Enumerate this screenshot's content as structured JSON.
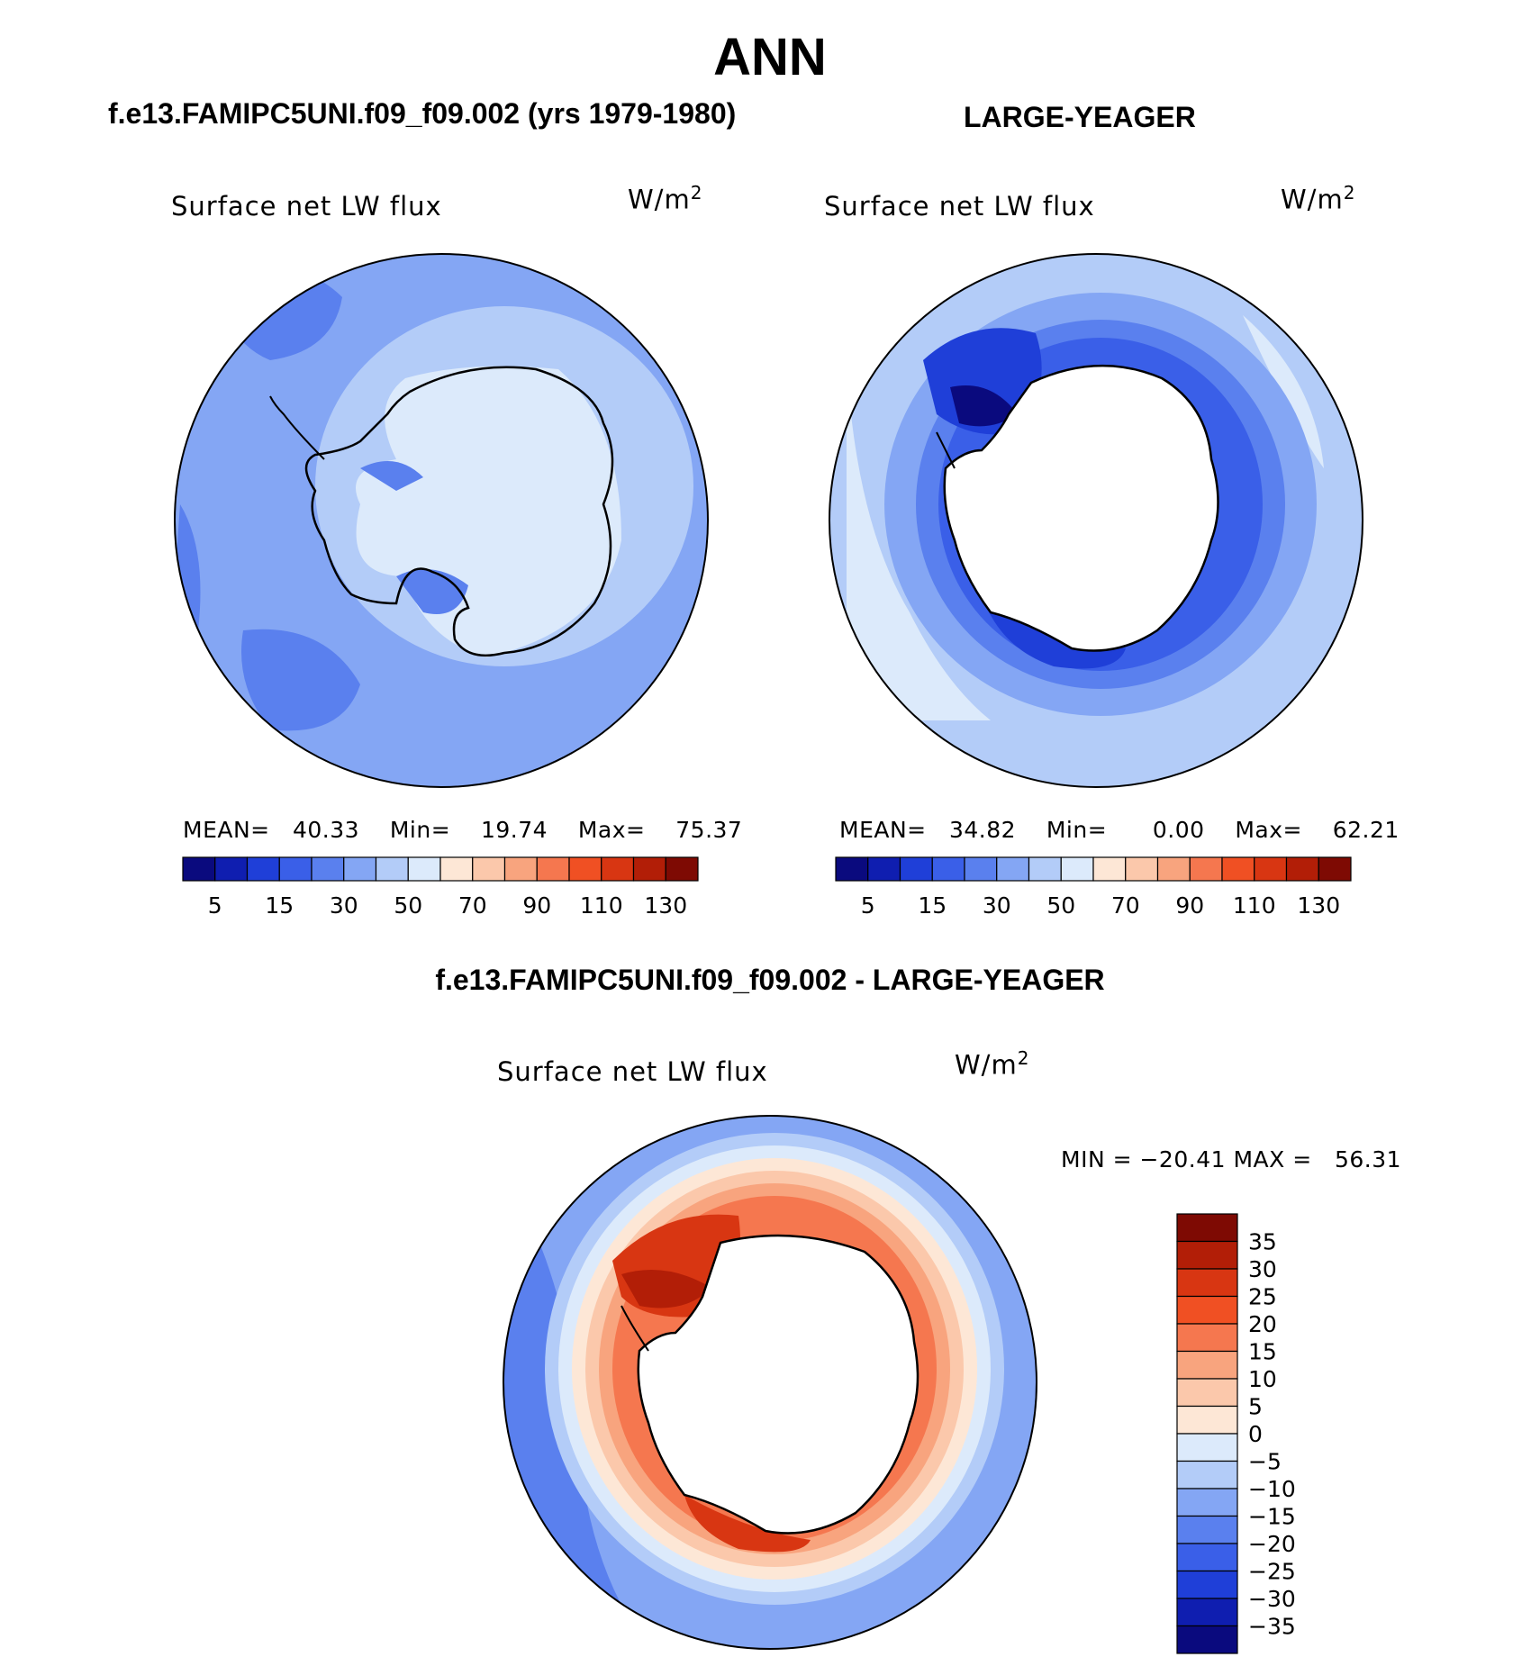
{
  "page": {
    "title": "ANN",
    "left_case": "f.e13.FAMIPC5UNI.f09_f09.002 (yrs 1979-1980)",
    "right_case": "LARGE-YEAGER",
    "diff_title": "f.e13.FAMIPC5UNI.f09_f09.002 - LARGE-YEAGER"
  },
  "panels": {
    "model": {
      "variable": "Surface net LW flux",
      "units_base": "W/m",
      "units_exp": "2",
      "mean_label": "MEAN=",
      "mean": "40.33",
      "min_label": "Min=",
      "min": "19.74",
      "max_label": "Max=",
      "max": "75.37"
    },
    "obs": {
      "variable": "Surface net LW flux",
      "units_base": "W/m",
      "units_exp": "2",
      "mean_label": "MEAN=",
      "mean": "34.82",
      "min_label": "Min=",
      "min": "0.00",
      "max_label": "Max=",
      "max": "62.21"
    },
    "diff": {
      "variable": "Surface net LW flux",
      "units_base": "W/m",
      "units_exp": "2",
      "minmax": "MIN = −20.41 MAX =   56.31"
    }
  },
  "colorbars": {
    "field": {
      "colors": [
        "#0a0a7e",
        "#0f1eb0",
        "#1f3fd8",
        "#3a5fe8",
        "#5a80ee",
        "#84a6f4",
        "#b3ccf8",
        "#dceafb",
        "#fde7d6",
        "#fbc8ab",
        "#f8a47e",
        "#f5774f",
        "#f05023",
        "#d83612",
        "#b21e07",
        "#7e0a03"
      ],
      "tick_labels": [
        "5",
        "15",
        "30",
        "50",
        "70",
        "90",
        "110",
        "130"
      ]
    },
    "diff": {
      "colors": [
        "#0a0a7e",
        "#0f1eb0",
        "#1f3fd8",
        "#3a5fe8",
        "#5a80ee",
        "#84a6f4",
        "#b3ccf8",
        "#dceafb",
        "#fde7d6",
        "#fbc8ab",
        "#f8a47e",
        "#f5774f",
        "#f05023",
        "#d83612",
        "#b21e07",
        "#7e0a03"
      ],
      "tick_labels": [
        "35",
        "30",
        "25",
        "20",
        "15",
        "10",
        "5",
        "0",
        "−5",
        "−10",
        "−15",
        "−20",
        "−25",
        "−30",
        "−35"
      ]
    }
  }
}
